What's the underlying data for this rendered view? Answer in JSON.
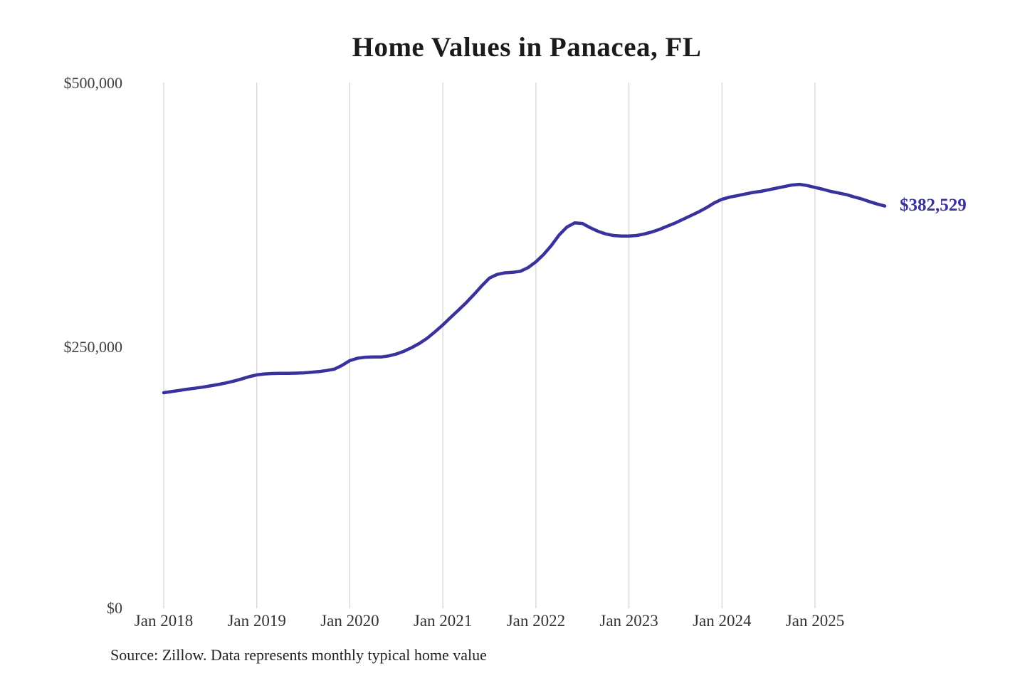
{
  "chart_data": {
    "type": "line",
    "title": "Home Values in Panacea, FL",
    "source_note": "Source: Zillow. Data represents monthly typical home value",
    "series_name": "Monthly typical home value",
    "line_color": "#39319d",
    "gridline_color": "#cbcbcb",
    "end_label": "$382,529",
    "latest_value": 382529,
    "ylim": [
      0,
      500000
    ],
    "grid": "vertical-year-gridlines-only",
    "legend": "none",
    "y_ticks": [
      {
        "value": 500000,
        "label": "$500,000"
      },
      {
        "value": 250000,
        "label": "$250,000"
      },
      {
        "value": 0,
        "label": "$0"
      }
    ],
    "x_tick_labels": [
      "Jan 2018",
      "Jan 2019",
      "Jan 2020",
      "Jan 2021",
      "Jan 2022",
      "Jan 2023",
      "Jan 2024",
      "Jan 2025"
    ],
    "x": [
      "2018-01",
      "2018-02",
      "2018-03",
      "2018-04",
      "2018-05",
      "2018-06",
      "2018-07",
      "2018-08",
      "2018-09",
      "2018-10",
      "2018-11",
      "2018-12",
      "2019-01",
      "2019-02",
      "2019-03",
      "2019-04",
      "2019-05",
      "2019-06",
      "2019-07",
      "2019-08",
      "2019-09",
      "2019-10",
      "2019-11",
      "2019-12",
      "2020-01",
      "2020-02",
      "2020-03",
      "2020-04",
      "2020-05",
      "2020-06",
      "2020-07",
      "2020-08",
      "2020-09",
      "2020-10",
      "2020-11",
      "2020-12",
      "2021-01",
      "2021-02",
      "2021-03",
      "2021-04",
      "2021-05",
      "2021-06",
      "2021-07",
      "2021-08",
      "2021-09",
      "2021-10",
      "2021-11",
      "2021-12",
      "2022-01",
      "2022-02",
      "2022-03",
      "2022-04",
      "2022-05",
      "2022-06",
      "2022-07",
      "2022-08",
      "2022-09",
      "2022-10",
      "2022-11",
      "2022-12",
      "2023-01",
      "2023-02",
      "2023-03",
      "2023-04",
      "2023-05",
      "2023-06",
      "2023-07",
      "2023-08",
      "2023-09",
      "2023-10",
      "2023-11",
      "2023-12",
      "2024-01",
      "2024-02",
      "2024-03",
      "2024-04",
      "2024-05",
      "2024-06",
      "2024-07",
      "2024-08",
      "2024-09",
      "2024-10",
      "2024-11",
      "2024-12",
      "2025-01",
      "2025-02",
      "2025-03",
      "2025-04",
      "2025-05",
      "2025-06",
      "2025-07",
      "2025-08",
      "2025-09",
      "2025-10"
    ],
    "values": [
      205000,
      206100,
      207200,
      208300,
      209300,
      210300,
      211500,
      212800,
      214300,
      216000,
      218000,
      220200,
      222000,
      222900,
      223300,
      223500,
      223500,
      223600,
      223900,
      224400,
      225100,
      226100,
      227400,
      231000,
      235500,
      237800,
      238800,
      239000,
      239000,
      240000,
      241800,
      244500,
      248000,
      252000,
      257000,
      263000,
      269500,
      276500,
      283500,
      290500,
      298300,
      306500,
      314000,
      317500,
      319000,
      319500,
      320500,
      324000,
      329500,
      336500,
      345000,
      355000,
      362500,
      366500,
      366000,
      362000,
      358500,
      356000,
      354500,
      354000,
      354000,
      354500,
      356000,
      358000,
      360500,
      363500,
      366500,
      370000,
      373500,
      377000,
      381000,
      385500,
      389000,
      391000,
      392500,
      394000,
      395500,
      396500,
      398000,
      399500,
      401000,
      402500,
      403200,
      402000,
      400300,
      398500,
      396500,
      395000,
      393500,
      391300,
      389300,
      386800,
      384500,
      382529
    ]
  }
}
